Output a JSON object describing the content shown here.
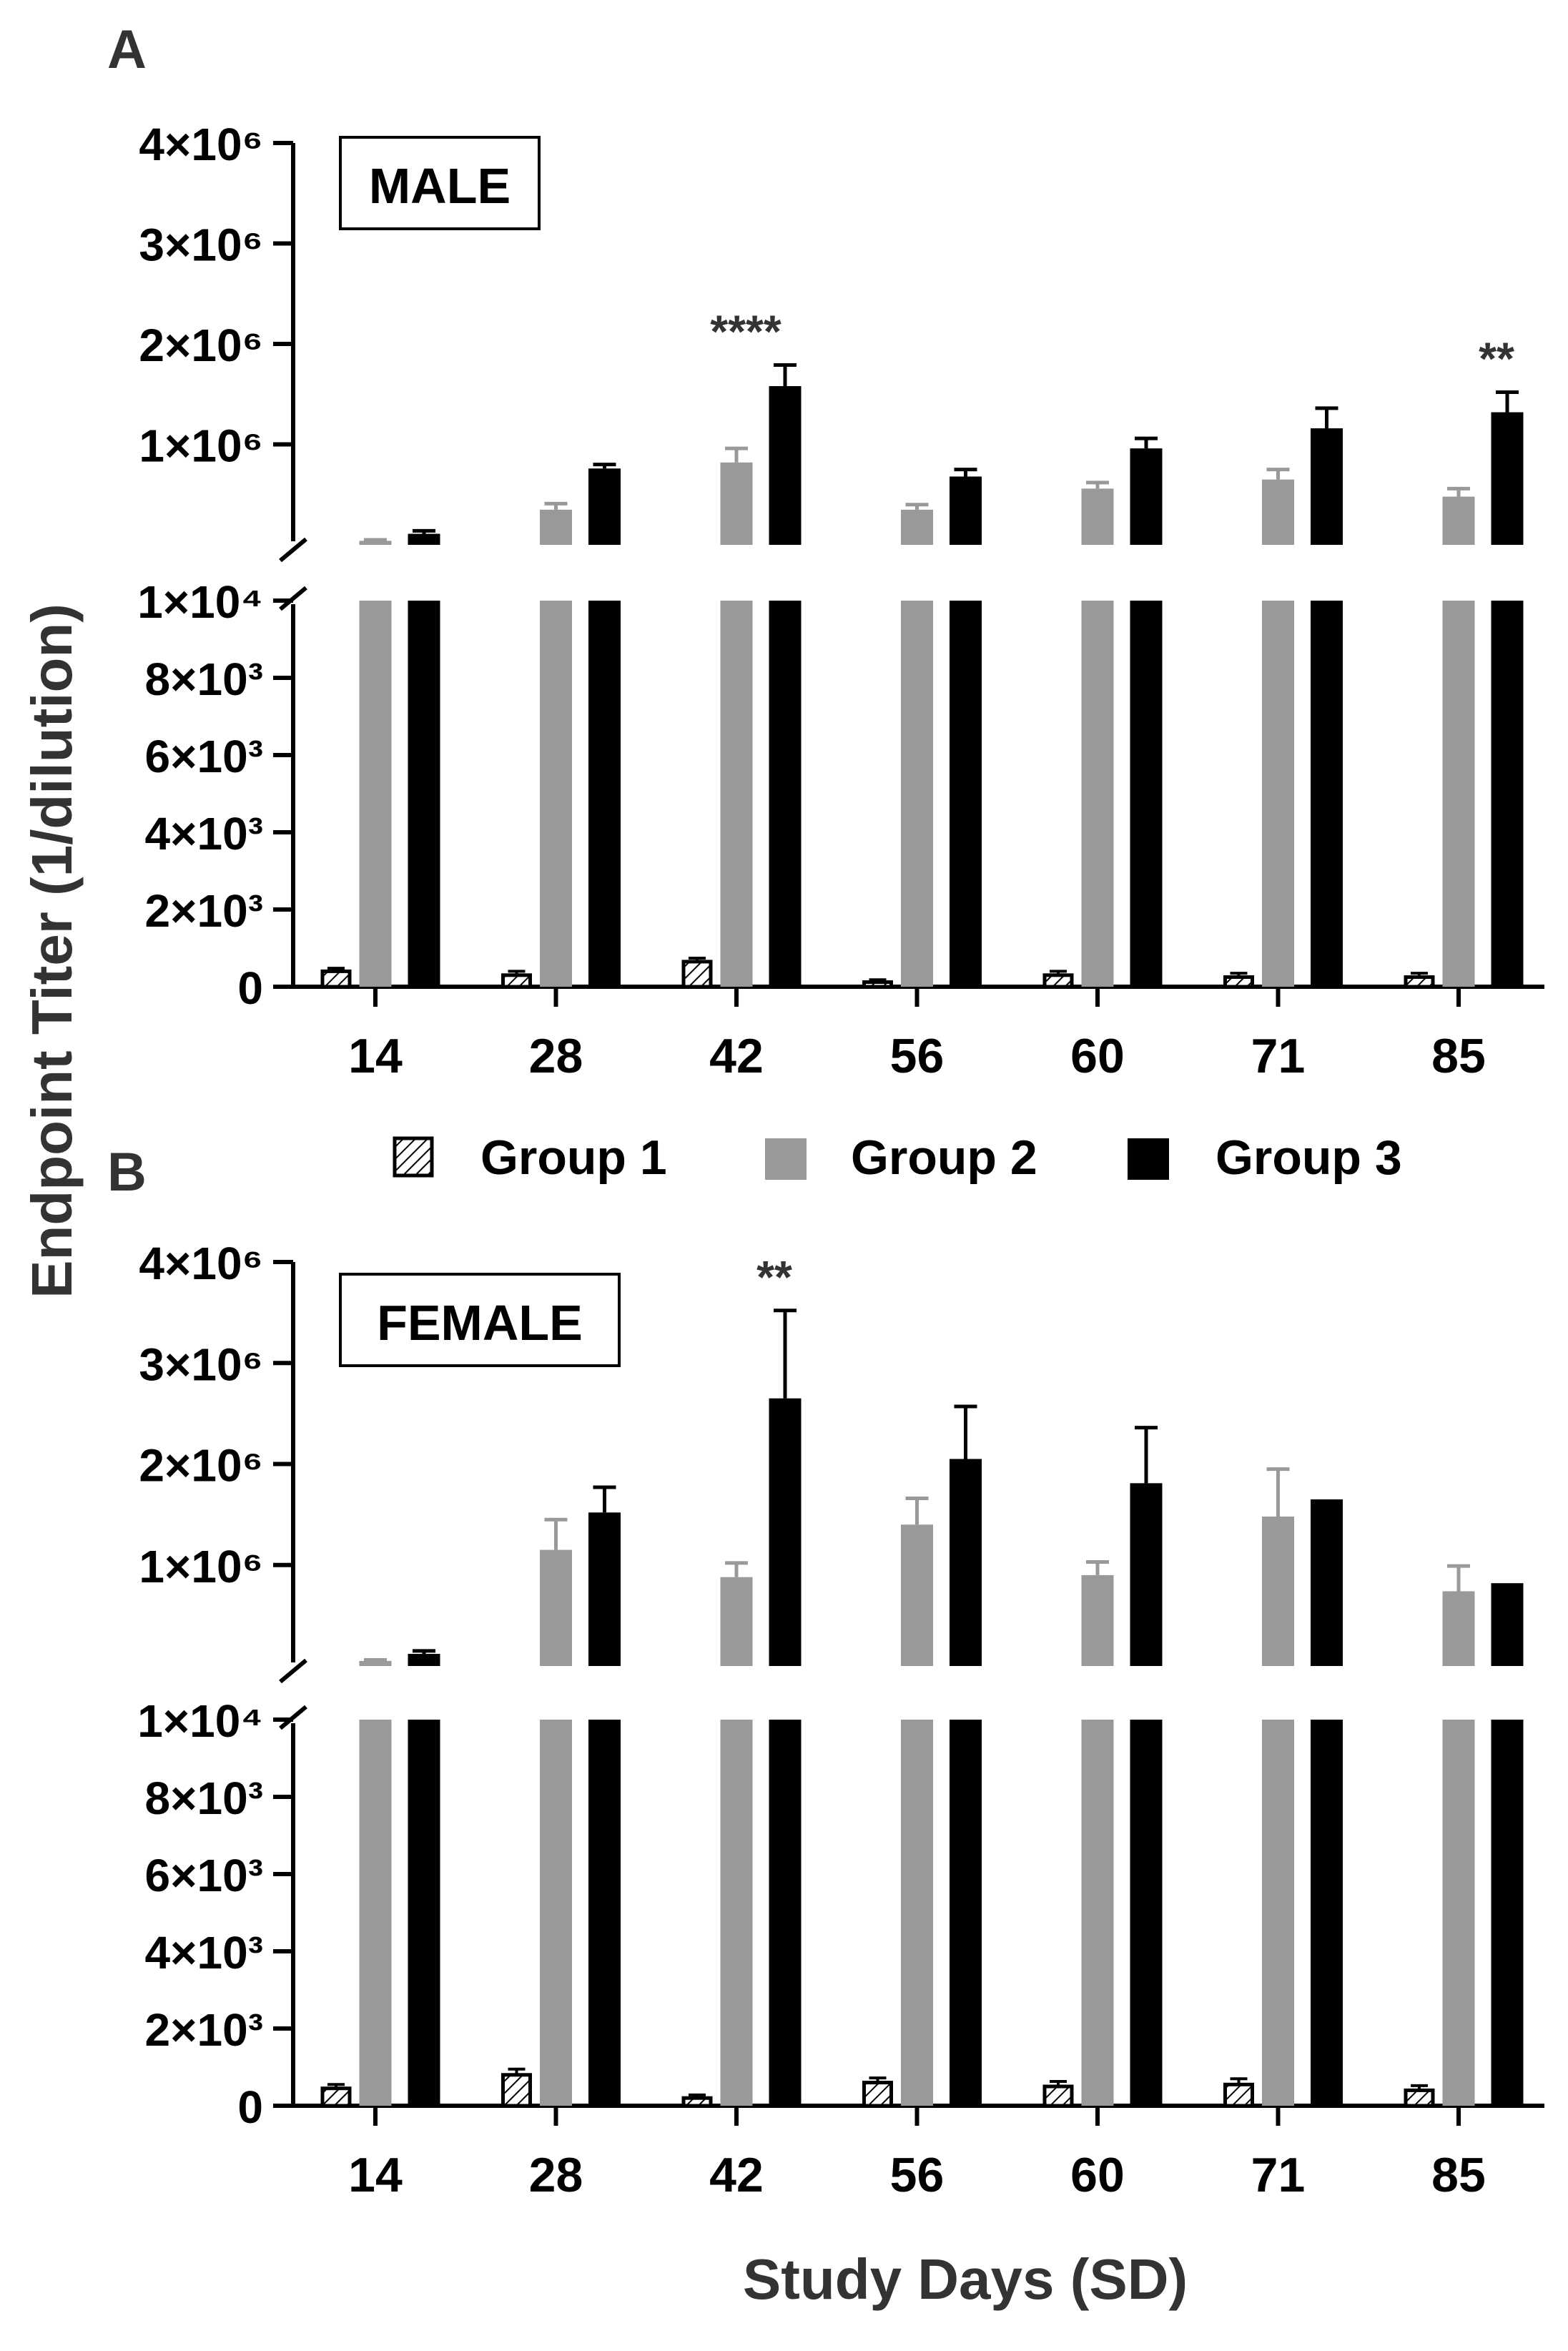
{
  "y_axis_label": "Endpoint Titer (1/dilution)",
  "x_axis_label": "Study Days (SD)",
  "legend": [
    {
      "name": "Group 1",
      "style": "hatched"
    },
    {
      "name": "Group 2",
      "color": "#999999"
    },
    {
      "name": "Group 3",
      "color": "#000000"
    }
  ],
  "colors": {
    "group1": "#ffffff",
    "group2": "#999999",
    "group3": "#000000",
    "error_group2": "#999999",
    "error_group3": "#000000"
  },
  "chart_data": [
    {
      "type": "bar",
      "panel": "A",
      "title": "MALE",
      "categories": [
        "14",
        "28",
        "42",
        "56",
        "60",
        "71",
        "85"
      ],
      "xlabel": "Study Days (SD)",
      "ylabel": "Endpoint Titer (1/dilution)",
      "y_axis_segments": {
        "lower": {
          "range": [
            0,
            10000
          ],
          "ticks": [
            0,
            2000,
            4000,
            6000,
            8000,
            10000
          ],
          "tick_labels": [
            "0",
            "2×10³",
            "4×10³",
            "6×10³",
            "8×10³",
            "1×10⁴"
          ]
        },
        "upper": {
          "range": [
            0,
            4000000
          ],
          "ticks": [
            1000000,
            2000000,
            3000000,
            4000000
          ],
          "tick_labels": [
            "1×10⁶",
            "2×10⁶",
            "3×10⁶",
            "4×10⁶"
          ]
        }
      },
      "series": [
        {
          "name": "Group 1",
          "values": [
            400,
            300,
            650,
            120,
            300,
            250,
            250
          ],
          "errors": [
            80,
            100,
            90,
            60,
            100,
            100,
            100
          ]
        },
        {
          "name": "Group 2",
          "values": [
            40000,
            350000,
            820000,
            350000,
            560000,
            650000,
            480000
          ],
          "errors": [
            10000,
            60000,
            140000,
            50000,
            60000,
            100000,
            80000
          ]
        },
        {
          "name": "Group 3",
          "values": [
            110000,
            760000,
            1580000,
            680000,
            960000,
            1160000,
            1320000
          ],
          "errors": [
            30000,
            40000,
            210000,
            70000,
            100000,
            200000,
            200000
          ]
        }
      ],
      "annotations": [
        {
          "category": "42",
          "text": "****"
        },
        {
          "category": "85",
          "text": "**"
        }
      ]
    },
    {
      "type": "bar",
      "panel": "B",
      "title": "FEMALE",
      "categories": [
        "14",
        "28",
        "42",
        "56",
        "60",
        "71",
        "85"
      ],
      "xlabel": "Study Days (SD)",
      "ylabel": "Endpoint Titer (1/dilution)",
      "y_axis_segments": {
        "lower": {
          "range": [
            0,
            10000
          ],
          "ticks": [
            0,
            2000,
            4000,
            6000,
            8000,
            10000
          ],
          "tick_labels": [
            "0",
            "2×10³",
            "4×10³",
            "6×10³",
            "8×10³",
            "1×10⁴"
          ]
        },
        "upper": {
          "range": [
            0,
            4000000
          ],
          "ticks": [
            1000000,
            2000000,
            3000000,
            4000000
          ],
          "tick_labels": [
            "1×10⁶",
            "2×10⁶",
            "3×10⁶",
            "4×10⁶"
          ]
        }
      },
      "series": [
        {
          "name": "Group 1",
          "values": [
            450,
            800,
            200,
            600,
            500,
            550,
            400
          ],
          "errors": [
            100,
            150,
            80,
            120,
            130,
            150,
            120
          ]
        },
        {
          "name": "Group 2",
          "values": [
            50000,
            1150000,
            880000,
            1400000,
            900000,
            1480000,
            740000
          ],
          "errors": [
            10000,
            300000,
            140000,
            260000,
            130000,
            470000,
            250000
          ]
        },
        {
          "name": "Group 3",
          "values": [
            120000,
            1520000,
            2650000,
            2050000,
            1810000,
            1650000,
            820000
          ],
          "errors": [
            30000,
            250000,
            870000,
            520000,
            550000,
            0,
            0
          ]
        }
      ],
      "annotations": [
        {
          "category": "42",
          "text": "**"
        }
      ]
    }
  ]
}
